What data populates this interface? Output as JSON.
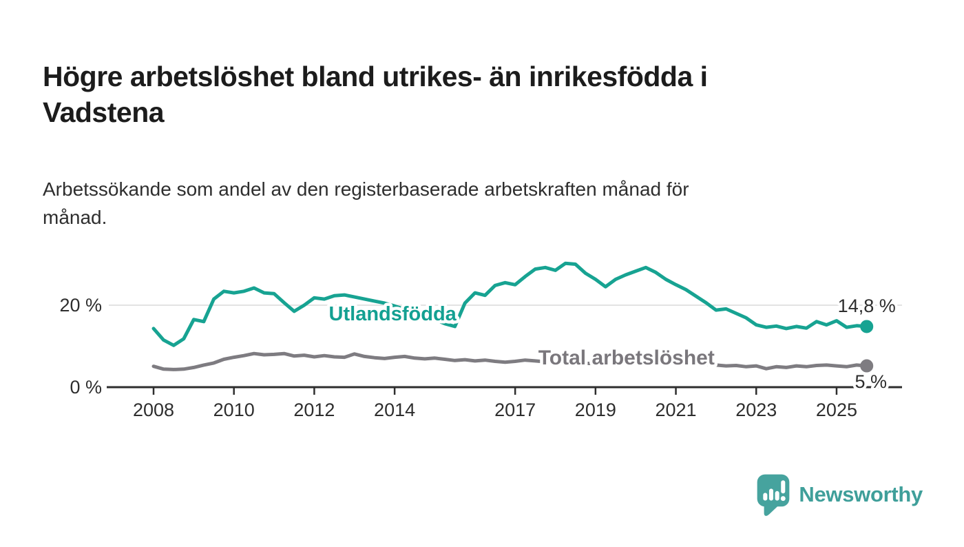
{
  "header": {
    "title": "Högre arbetslöshet bland utrikes- än inrikesfödda i Vadstena",
    "title_lines": [
      "Högre arbetslöshet bland utrikes- än inrikesfödda i",
      "Vadstena"
    ],
    "subtitle": "Arbetssökande som andel av den registerbaserade arbetskraften månad för månad.",
    "subtitle_lines": [
      "Arbetssökande som andel av den registerbaserade arbetskraften månad för",
      "månad."
    ]
  },
  "chart_data": {
    "type": "line",
    "title": "Högre arbetslöshet bland utrikes- än inrikesfödda i Vadstena",
    "subtitle": "Arbetssökande som andel av den registerbaserade arbetskraften månad för månad.",
    "xlabel": "",
    "ylabel": "",
    "xlim": [
      2006.9,
      2026.6
    ],
    "ylim": [
      0,
      33
    ],
    "grid": "y-only",
    "x_axis": {
      "ticks": [
        2008,
        2010,
        2012,
        2014,
        2017,
        2019,
        2021,
        2023,
        2025
      ]
    },
    "y_axis": {
      "ticks": [
        {
          "value": 0,
          "label": "0 %"
        },
        {
          "value": 20,
          "label": "20 %"
        }
      ]
    },
    "x": [
      2008.0,
      2008.25,
      2008.5,
      2008.75,
      2009.0,
      2009.25,
      2009.5,
      2009.75,
      2010.0,
      2010.25,
      2010.5,
      2010.75,
      2011.0,
      2011.25,
      2011.5,
      2011.75,
      2012.0,
      2012.25,
      2012.5,
      2012.75,
      2013.0,
      2013.25,
      2013.5,
      2013.75,
      2014.0,
      2014.25,
      2014.5,
      2014.75,
      2015.0,
      2015.25,
      2015.5,
      2015.75,
      2016.0,
      2016.25,
      2016.5,
      2016.75,
      2017.0,
      2017.25,
      2017.5,
      2017.75,
      2018.0,
      2018.25,
      2018.5,
      2018.75,
      2019.0,
      2019.25,
      2019.5,
      2019.75,
      2020.0,
      2020.25,
      2020.5,
      2020.75,
      2021.0,
      2021.25,
      2021.5,
      2021.75,
      2022.0,
      2022.25,
      2022.5,
      2022.75,
      2023.0,
      2023.25,
      2023.5,
      2023.75,
      2024.0,
      2024.25,
      2024.5,
      2024.75,
      2025.0,
      2025.25,
      2025.5,
      2025.75
    ],
    "series": [
      {
        "id": "utlandsfodda",
        "name": "Utlandsfödda",
        "color": "#17a392",
        "label_color": "#13a092",
        "label_font_size": 29,
        "end_label": "14,8 %",
        "end_value": 14.8,
        "label_at": {
          "x": 2013.95,
          "y": 18.0
        },
        "end_label_offset": {
          "dx": 0,
          "dy": -21
        },
        "values": [
          14.3,
          11.5,
          10.2,
          11.8,
          16.5,
          16.0,
          21.5,
          23.4,
          23.0,
          23.4,
          24.2,
          23.0,
          22.8,
          20.6,
          18.5,
          20.0,
          21.8,
          21.5,
          22.3,
          22.5,
          22.0,
          21.5,
          21.0,
          20.5,
          19.8,
          19.0,
          18.2,
          17.5,
          16.5,
          15.5,
          14.8,
          20.5,
          23.0,
          22.4,
          24.8,
          25.5,
          25.0,
          27.0,
          28.8,
          29.2,
          28.5,
          30.2,
          30.0,
          27.8,
          26.3,
          24.5,
          26.3,
          27.4,
          28.3,
          29.2,
          28.0,
          26.3,
          25.0,
          23.8,
          22.2,
          20.6,
          18.8,
          19.1,
          18.0,
          16.9,
          15.2,
          14.6,
          14.9,
          14.3,
          14.8,
          14.4,
          16.0,
          15.2,
          16.2,
          14.6,
          15.0,
          14.8
        ]
      },
      {
        "id": "total",
        "name": "Total arbetslöshet",
        "color": "#7e7c81",
        "label_color": "#7a777c",
        "label_font_size": 30,
        "end_label": "5 %",
        "end_value": 5.2,
        "label_at": {
          "x": 2019.77,
          "y": 7.2
        },
        "end_label_offset": {
          "dx": 6,
          "dy": 32
        },
        "values": [
          5.1,
          4.4,
          4.3,
          4.4,
          4.8,
          5.4,
          5.9,
          6.8,
          7.3,
          7.7,
          8.2,
          7.9,
          8.0,
          8.2,
          7.6,
          7.8,
          7.4,
          7.7,
          7.4,
          7.3,
          8.1,
          7.5,
          7.2,
          7.0,
          7.3,
          7.5,
          7.1,
          6.9,
          7.1,
          6.8,
          6.5,
          6.7,
          6.4,
          6.6,
          6.3,
          6.1,
          6.3,
          6.6,
          6.4,
          6.2,
          6.1,
          6.0,
          5.9,
          5.8,
          5.8,
          5.9,
          6.0,
          6.1,
          6.3,
          6.7,
          6.8,
          6.6,
          6.3,
          6.1,
          5.9,
          5.6,
          5.4,
          5.2,
          5.3,
          5.0,
          5.2,
          4.5,
          5.0,
          4.8,
          5.2,
          5.0,
          5.3,
          5.4,
          5.2,
          5.0,
          5.4,
          5.2
        ]
      }
    ],
    "style": {
      "grid_color": "#dadada",
      "axis_color": "#2e2e2e",
      "tick_text_color": "#2e2e2e",
      "value_label_color": "#2d2d2d",
      "halo_color": "#ffffff"
    }
  },
  "footer": {
    "brand": "Newsworthy",
    "brand_text_color": "#3f9f9a",
    "brand_mark_color": "#46a39e"
  }
}
